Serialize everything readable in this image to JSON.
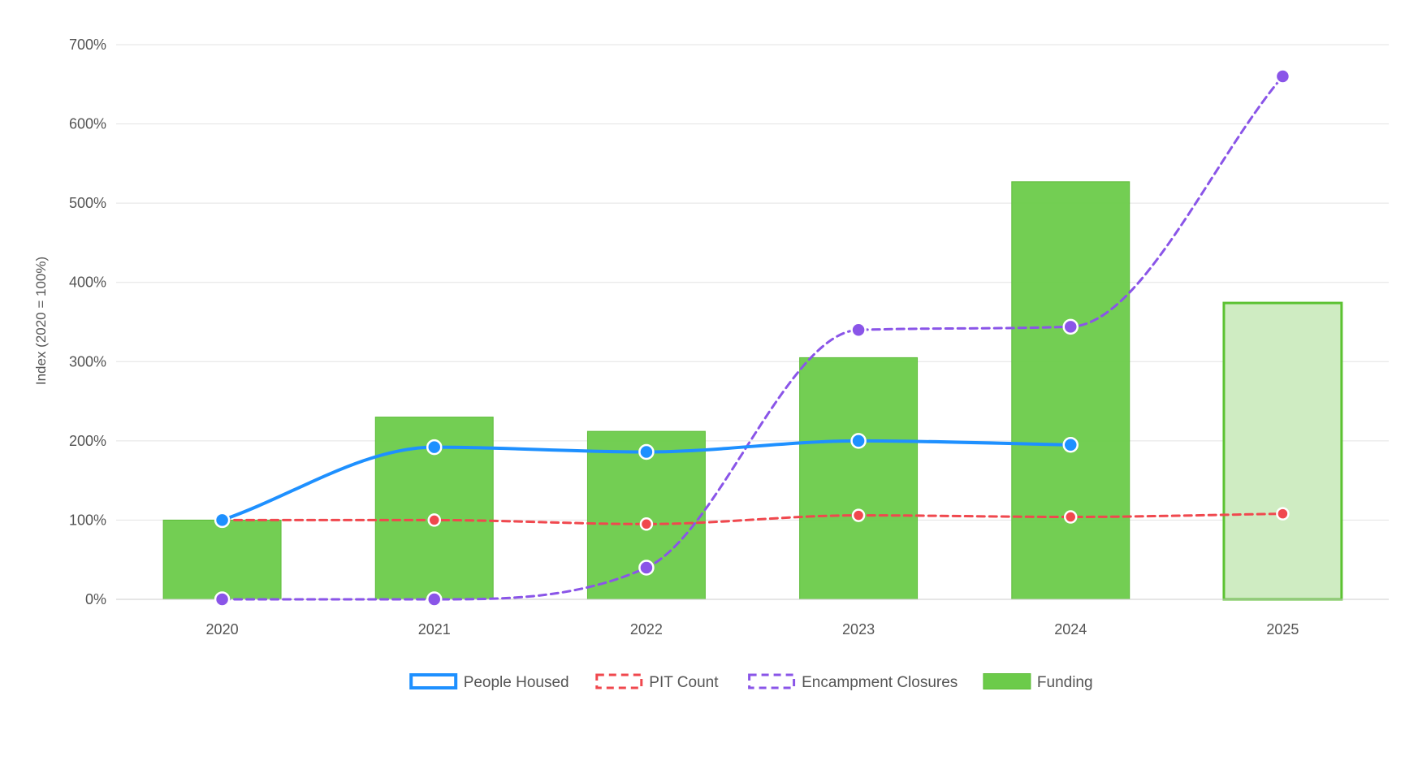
{
  "chart_data": {
    "type": "bar",
    "title": "",
    "xlabel": "",
    "ylabel": "Index (2020 = 100%)",
    "ylim": [
      0,
      700
    ],
    "yticks": [
      0,
      100,
      200,
      300,
      400,
      500,
      600,
      700
    ],
    "ytick_labels": [
      "0%",
      "100%",
      "200%",
      "300%",
      "400%",
      "500%",
      "600%",
      "700%"
    ],
    "categories": [
      "2020",
      "2021",
      "2022",
      "2023",
      "2024",
      "2025"
    ],
    "grid": true,
    "legend_position": "bottom-center",
    "series": [
      {
        "name": "Funding",
        "kind": "bar",
        "color": "#6ccb4a",
        "values": [
          100,
          230,
          212,
          305,
          527,
          374
        ],
        "projected": [
          false,
          false,
          false,
          false,
          false,
          true
        ],
        "projected_color": "#cfecc2"
      },
      {
        "name": "People Housed",
        "kind": "line",
        "style": "solid",
        "color": "#1e90ff",
        "values": [
          100,
          192,
          186,
          200,
          195,
          null
        ]
      },
      {
        "name": "PIT Count",
        "kind": "line",
        "style": "dashed",
        "color": "#f0484e",
        "values": [
          100,
          100,
          95,
          106,
          104,
          108
        ]
      },
      {
        "name": "Encampment Closures",
        "kind": "line",
        "style": "dashed",
        "color": "#8a55e8",
        "values": [
          0,
          0,
          40,
          340,
          344,
          660
        ]
      }
    ],
    "legend": [
      "People Housed",
      "PIT Count",
      "Encampment Closures",
      "Funding"
    ]
  }
}
